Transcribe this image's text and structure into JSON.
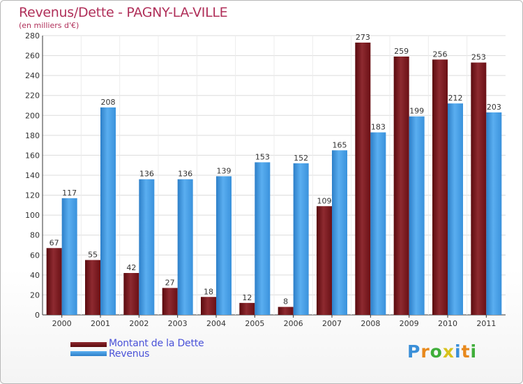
{
  "chart_data": {
    "type": "bar",
    "title": "Revenus/Dette - PAGNY-LA-VILLE",
    "subtitle": "(en milliers d'€)",
    "categories": [
      "2000",
      "2001",
      "2002",
      "2003",
      "2004",
      "2005",
      "2006",
      "2007",
      "2008",
      "2009",
      "2010",
      "2011"
    ],
    "series": [
      {
        "name": "Montant de la Dette",
        "color": "#7a1016",
        "values": [
          67,
          55,
          42,
          27,
          18,
          12,
          8,
          109,
          273,
          259,
          256,
          253
        ]
      },
      {
        "name": "Revenus",
        "color": "#3f9ee6",
        "values": [
          117,
          208,
          136,
          136,
          139,
          153,
          152,
          165,
          183,
          199,
          212,
          203
        ]
      }
    ],
    "ylim": [
      0,
      280
    ],
    "yticks": [
      "0",
      "20",
      "40",
      "60",
      "80",
      "100",
      "120",
      "140",
      "160",
      "180",
      "200",
      "220",
      "240",
      "260",
      "280"
    ],
    "grid": true,
    "legend_position": "bottom-left"
  },
  "logo": {
    "letters": [
      "P",
      "r",
      "o",
      "x",
      "i",
      "t",
      "i"
    ],
    "colors": [
      "#3a8fd8",
      "#e8891c",
      "#3fae3a",
      "#d8c21c",
      "#3a8fd8",
      "#e8891c",
      "#3fae3a"
    ]
  }
}
